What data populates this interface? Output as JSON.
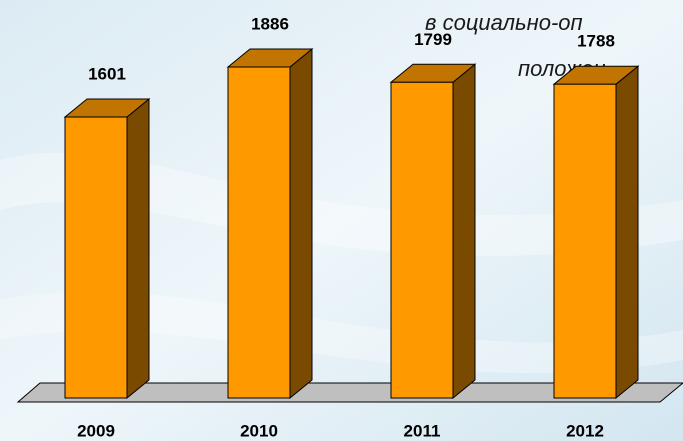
{
  "chart_data": {
    "type": "bar3d",
    "annotations": [
      "в социально-оп",
      "положен"
    ],
    "categories": [
      "2009",
      "2010",
      "2011",
      "2012"
    ],
    "values": [
      1601,
      1886,
      1799,
      1788
    ],
    "colors": {
      "front": "#ff9900",
      "side": "#7a4a00",
      "top": "#c27400"
    }
  }
}
